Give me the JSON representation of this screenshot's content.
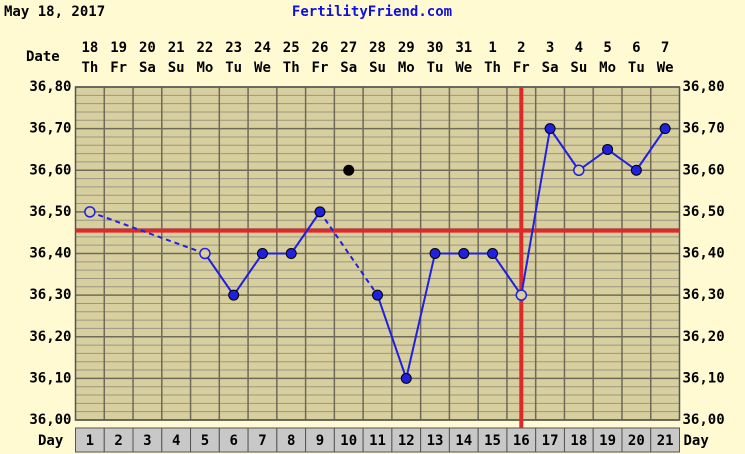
{
  "chart_data": {
    "type": "line",
    "date_text": "May 18, 2017",
    "site": "FertilityFriend.com",
    "date_label": "Date",
    "day_label": "Day",
    "days": [
      1,
      2,
      3,
      4,
      5,
      6,
      7,
      8,
      9,
      10,
      11,
      12,
      13,
      14,
      15,
      16,
      17,
      18,
      19,
      20,
      21
    ],
    "dates": [
      "18",
      "19",
      "20",
      "21",
      "22",
      "23",
      "24",
      "25",
      "26",
      "27",
      "28",
      "29",
      "30",
      "31",
      "1",
      "2",
      "3",
      "4",
      "5",
      "6",
      "7"
    ],
    "weekdays": [
      "Th",
      "Fr",
      "Sa",
      "Su",
      "Mo",
      "Tu",
      "We",
      "Th",
      "Fr",
      "Sa",
      "Su",
      "Mo",
      "Tu",
      "We",
      "Th",
      "Fr",
      "Sa",
      "Su",
      "Mo",
      "Tu",
      "We"
    ],
    "series": [
      {
        "color": "#2020e0",
        "values": [
          36.5,
          null,
          null,
          null,
          36.4,
          36.3,
          36.4,
          36.4,
          36.5,
          null,
          36.3,
          36.1,
          36.4,
          36.4,
          36.4,
          36.3,
          36.7,
          36.6,
          36.65,
          36.6,
          36.7
        ],
        "hollow": [
          true,
          false,
          false,
          false,
          true,
          false,
          false,
          false,
          false,
          false,
          false,
          false,
          false,
          false,
          false,
          true,
          false,
          true,
          false,
          false,
          false
        ]
      },
      {
        "color": "#000000",
        "values": [
          null,
          null,
          null,
          null,
          null,
          null,
          null,
          null,
          null,
          36.6,
          null,
          null,
          null,
          null,
          null,
          null,
          null,
          null,
          null,
          null,
          null
        ]
      }
    ],
    "ylim": [
      36.0,
      36.8
    ],
    "yticks": [
      {
        "value": 36.0,
        "label": "36,00"
      },
      {
        "value": 36.1,
        "label": "36,10"
      },
      {
        "value": 36.2,
        "label": "36,20"
      },
      {
        "value": 36.3,
        "label": "36,30"
      },
      {
        "value": 36.4,
        "label": "36,40"
      },
      {
        "value": 36.5,
        "label": "36,50"
      },
      {
        "value": 36.6,
        "label": "36,60"
      },
      {
        "value": 36.7,
        "label": "36,70"
      },
      {
        "value": 36.8,
        "label": "36,80"
      }
    ],
    "coverline": 36.455,
    "ovulation_day": 16,
    "grid": true
  }
}
